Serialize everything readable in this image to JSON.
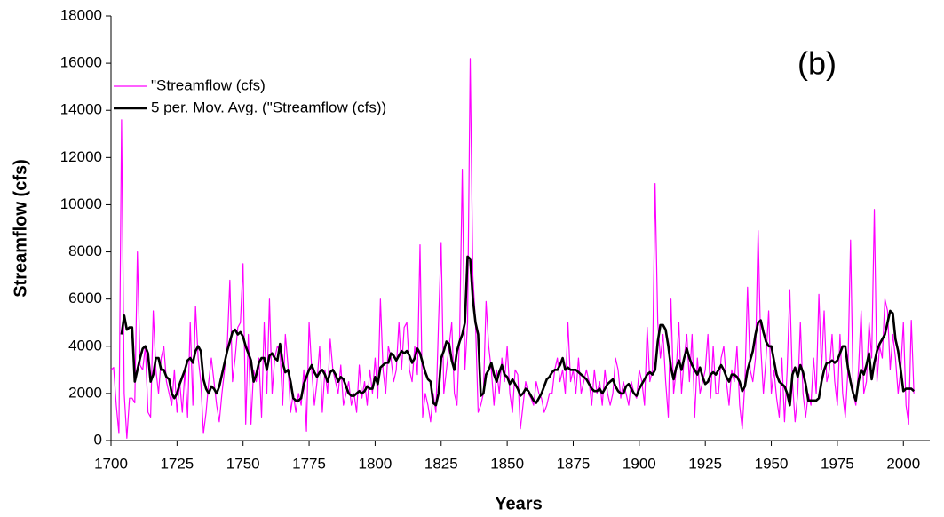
{
  "chart_data": {
    "type": "line",
    "xlabel": "Years",
    "ylabel": "Streamflow (cfs)",
    "annotation": "(b)",
    "x": [
      1700,
      1701,
      1702,
      1703,
      1704,
      1705,
      1706,
      1707,
      1708,
      1709,
      1710,
      1711,
      1712,
      1713,
      1714,
      1715,
      1716,
      1717,
      1718,
      1719,
      1720,
      1721,
      1722,
      1723,
      1724,
      1725,
      1726,
      1727,
      1728,
      1729,
      1730,
      1731,
      1732,
      1733,
      1734,
      1735,
      1736,
      1737,
      1738,
      1739,
      1740,
      1741,
      1742,
      1743,
      1744,
      1745,
      1746,
      1747,
      1748,
      1749,
      1750,
      1751,
      1752,
      1753,
      1754,
      1755,
      1756,
      1757,
      1758,
      1759,
      1760,
      1761,
      1762,
      1763,
      1764,
      1765,
      1766,
      1767,
      1768,
      1769,
      1770,
      1771,
      1772,
      1773,
      1774,
      1775,
      1776,
      1777,
      1778,
      1779,
      1780,
      1781,
      1782,
      1783,
      1784,
      1785,
      1786,
      1787,
      1788,
      1789,
      1790,
      1791,
      1792,
      1793,
      1794,
      1795,
      1796,
      1797,
      1798,
      1799,
      1800,
      1801,
      1802,
      1803,
      1804,
      1805,
      1806,
      1807,
      1808,
      1809,
      1810,
      1811,
      1812,
      1813,
      1814,
      1815,
      1816,
      1817,
      1818,
      1819,
      1820,
      1821,
      1822,
      1823,
      1824,
      1825,
      1826,
      1827,
      1828,
      1829,
      1830,
      1831,
      1832,
      1833,
      1834,
      1835,
      1836,
      1837,
      1838,
      1839,
      1840,
      1841,
      1842,
      1843,
      1844,
      1845,
      1846,
      1847,
      1848,
      1849,
      1850,
      1851,
      1852,
      1853,
      1854,
      1855,
      1856,
      1857,
      1858,
      1859,
      1860,
      1861,
      1862,
      1863,
      1864,
      1865,
      1866,
      1867,
      1868,
      1869,
      1870,
      1871,
      1872,
      1873,
      1874,
      1875,
      1876,
      1877,
      1878,
      1879,
      1880,
      1881,
      1882,
      1883,
      1884,
      1885,
      1886,
      1887,
      1888,
      1889,
      1890,
      1891,
      1892,
      1893,
      1894,
      1895,
      1896,
      1897,
      1898,
      1899,
      1900,
      1901,
      1902,
      1903,
      1904,
      1905,
      1906,
      1907,
      1908,
      1909,
      1910,
      1911,
      1912,
      1913,
      1914,
      1915,
      1916,
      1917,
      1918,
      1919,
      1920,
      1921,
      1922,
      1923,
      1924,
      1925,
      1926,
      1927,
      1928,
      1929,
      1930,
      1931,
      1932,
      1933,
      1934,
      1935,
      1936,
      1937,
      1938,
      1939,
      1940,
      1941,
      1942,
      1943,
      1944,
      1945,
      1946,
      1947,
      1948,
      1949,
      1950,
      1951,
      1952,
      1953,
      1954,
      1955,
      1956,
      1957,
      1958,
      1959,
      1960,
      1961,
      1962,
      1963,
      1964,
      1965,
      1966,
      1967,
      1968,
      1969,
      1970,
      1971,
      1972,
      1973,
      1974,
      1975,
      1976,
      1977,
      1978,
      1979,
      1980,
      1981,
      1982,
      1983,
      1984,
      1985,
      1986,
      1987,
      1988,
      1989,
      1990,
      1991,
      1992,
      1993,
      1994,
      1995,
      1996,
      1997,
      1998,
      1999,
      2000,
      2001,
      2002,
      2003,
      2004
    ],
    "series": [
      {
        "name": "\"Streamflow (cfs)",
        "color": "#ff00ff",
        "width": 1.2,
        "values": [
          3000,
          3100,
          1500,
          300,
          13600,
          2000,
          100,
          1800,
          1800,
          1600,
          8000,
          3200,
          3000,
          4000,
          1200,
          1000,
          5500,
          3000,
          2000,
          3500,
          4000,
          2500,
          2000,
          1500,
          3000,
          1200,
          2500,
          1200,
          3000,
          1000,
          5000,
          1500,
          5700,
          3500,
          2500,
          300,
          1200,
          2500,
          3500,
          2500,
          1500,
          800,
          2000,
          3000,
          4000,
          6800,
          2500,
          3500,
          4800,
          5000,
          7500,
          700,
          4500,
          700,
          3000,
          2500,
          3500,
          1000,
          5000,
          2000,
          6000,
          2000,
          3500,
          4000,
          3800,
          1500,
          4500,
          3200,
          1200,
          2000,
          1200,
          2000,
          1500,
          3000,
          400,
          5000,
          3000,
          1500,
          2500,
          4000,
          1200,
          3000,
          2000,
          4300,
          3000,
          2500,
          2000,
          3200,
          1500,
          2000,
          2500,
          1500,
          2000,
          1200,
          3200,
          1800,
          2500,
          1500,
          3000,
          2000,
          3500,
          1800,
          6000,
          3000,
          2000,
          4000,
          3500,
          2500,
          3000,
          5000,
          3000,
          4800,
          5000,
          3000,
          2500,
          4000,
          2800,
          8300,
          1000,
          2000,
          1500,
          800,
          2000,
          1200,
          5000,
          8400,
          2000,
          3000,
          4000,
          5000,
          2000,
          1500,
          4500,
          11500,
          3000,
          5000,
          16200,
          7000,
          5000,
          1200,
          1500,
          2000,
          5900,
          4000,
          3000,
          1500,
          3000,
          2000,
          3500,
          2500,
          4000,
          2000,
          1200,
          3000,
          2800,
          500,
          1500,
          2500,
          2000,
          1800,
          1500,
          2500,
          2000,
          1800,
          1200,
          1500,
          2000,
          2000,
          3000,
          3500,
          2500,
          3000,
          2000,
          5000,
          2500,
          3000,
          2000,
          3500,
          2000,
          2500,
          3000,
          2500,
          1500,
          3000,
          2000,
          2500,
          1500,
          3000,
          2000,
          1500,
          2000,
          3500,
          3000,
          1800,
          2500,
          2000,
          1500,
          2500,
          2000,
          1800,
          3000,
          2500,
          1500,
          4800,
          2500,
          3000,
          10900,
          5000,
          3500,
          4500,
          2500,
          1000,
          6000,
          2000,
          3000,
          5000,
          2000,
          3500,
          4500,
          2500,
          4500,
          1000,
          3500,
          2000,
          2500,
          3000,
          4500,
          1800,
          4000,
          2000,
          2000,
          3500,
          4000,
          2500,
          1500,
          3000,
          2500,
          4000,
          1500,
          500,
          2500,
          6500,
          3000,
          2500,
          3500,
          8900,
          4000,
          2000,
          3500,
          5500,
          2000,
          3000,
          1800,
          1000,
          3500,
          800,
          3000,
          6400,
          2500,
          800,
          2000,
          5000,
          2000,
          1000,
          2000,
          1500,
          3500,
          2000,
          6200,
          3000,
          5500,
          2500,
          3000,
          4500,
          2500,
          1500,
          4500,
          2000,
          1000,
          3000,
          8500,
          2000,
          1500,
          3000,
          5500,
          2000,
          2500,
          5000,
          3500,
          9800,
          2500,
          4000,
          3500,
          6000,
          5500,
          3000,
          4500,
          3500,
          2000,
          3000,
          5000,
          1500,
          700,
          5100,
          2000
        ]
      },
      {
        "name": "5 per. Mov. Avg. (\"Streamflow (cfs))",
        "color": "#000000",
        "width": 2.6,
        "values": [
          null,
          null,
          null,
          null,
          4500,
          5300,
          4700,
          4800,
          4800,
          2500,
          3000,
          3500,
          3900,
          4000,
          3700,
          2500,
          2800,
          3500,
          3500,
          3000,
          3000,
          2700,
          2600,
          2000,
          1800,
          2000,
          2400,
          2700,
          3000,
          3400,
          3500,
          3300,
          3800,
          4000,
          3800,
          2600,
          2200,
          2000,
          2300,
          2200,
          2000,
          2300,
          2800,
          3300,
          3800,
          4200,
          4600,
          4700,
          4500,
          4600,
          4400,
          4000,
          3700,
          3400,
          2500,
          2800,
          3300,
          3500,
          3500,
          3000,
          3600,
          3700,
          3500,
          3400,
          4100,
          3300,
          2900,
          3000,
          2500,
          1800,
          1700,
          1700,
          1800,
          2400,
          2700,
          3000,
          3200,
          2900,
          2700,
          2900,
          3000,
          2800,
          2500,
          2900,
          3000,
          2800,
          2500,
          2700,
          2600,
          2300,
          2000,
          1900,
          1900,
          2000,
          2100,
          2000,
          2100,
          2300,
          2200,
          2200,
          2700,
          2400,
          3100,
          3200,
          3300,
          3300,
          3700,
          3600,
          3400,
          3600,
          3800,
          3700,
          3800,
          3600,
          3300,
          3500,
          3900,
          3700,
          3300,
          2900,
          2600,
          2500,
          1600,
          1500,
          2000,
          3500,
          3800,
          4200,
          4100,
          3400,
          3000,
          3800,
          4200,
          4500,
          5000,
          7800,
          7700,
          6000,
          5000,
          4500,
          1900,
          2000,
          2800,
          3000,
          3300,
          2800,
          2500,
          2900,
          3200,
          2800,
          2700,
          2400,
          2600,
          2400,
          2200,
          1900,
          2000,
          2200,
          2100,
          1900,
          1700,
          1600,
          1800,
          2000,
          2300,
          2600,
          2700,
          2900,
          3000,
          3000,
          3200,
          3500,
          3000,
          3100,
          3000,
          3000,
          3000,
          2900,
          2800,
          2700,
          2600,
          2400,
          2200,
          2100,
          2100,
          2200,
          2000,
          2200,
          2400,
          2500,
          2600,
          2300,
          2100,
          2000,
          2000,
          2300,
          2400,
          2200,
          2000,
          1900,
          2200,
          2400,
          2600,
          2800,
          2900,
          2800,
          3000,
          4200,
          4900,
          4900,
          4700,
          4000,
          3100,
          2600,
          3100,
          3400,
          3000,
          3500,
          3900,
          3500,
          3200,
          3000,
          2800,
          3100,
          2700,
          2400,
          2500,
          2800,
          2900,
          2800,
          3000,
          3200,
          3000,
          2700,
          2500,
          2800,
          2800,
          2700,
          2500,
          2100,
          2300,
          3000,
          3400,
          3800,
          4500,
          5000,
          5100,
          4600,
          4200,
          4000,
          4000,
          3400,
          2800,
          2500,
          2400,
          2300,
          2000,
          1500,
          2800,
          3100,
          2700,
          3200,
          2900,
          2400,
          1700,
          1700,
          1700,
          1700,
          1800,
          2500,
          3000,
          3300,
          3300,
          3400,
          3300,
          3400,
          3700,
          4000,
          4000,
          3100,
          2500,
          2000,
          1700,
          2500,
          3000,
          2800,
          3200,
          3700,
          2600,
          3300,
          3800,
          4100,
          4300,
          4500,
          5000,
          5500,
          5400,
          4300,
          3800,
          3000,
          2100,
          2200,
          2200,
          2200,
          2100
        ]
      }
    ],
    "xlim": [
      1700,
      2010
    ],
    "xticks": [
      1700,
      1725,
      1750,
      1775,
      1800,
      1825,
      1850,
      1875,
      1900,
      1925,
      1950,
      1975,
      2000
    ],
    "ylim": [
      0,
      18000
    ],
    "yticks": [
      0,
      2000,
      4000,
      6000,
      8000,
      10000,
      12000,
      14000,
      16000,
      18000
    ],
    "legend": "upper left",
    "grid": false
  }
}
